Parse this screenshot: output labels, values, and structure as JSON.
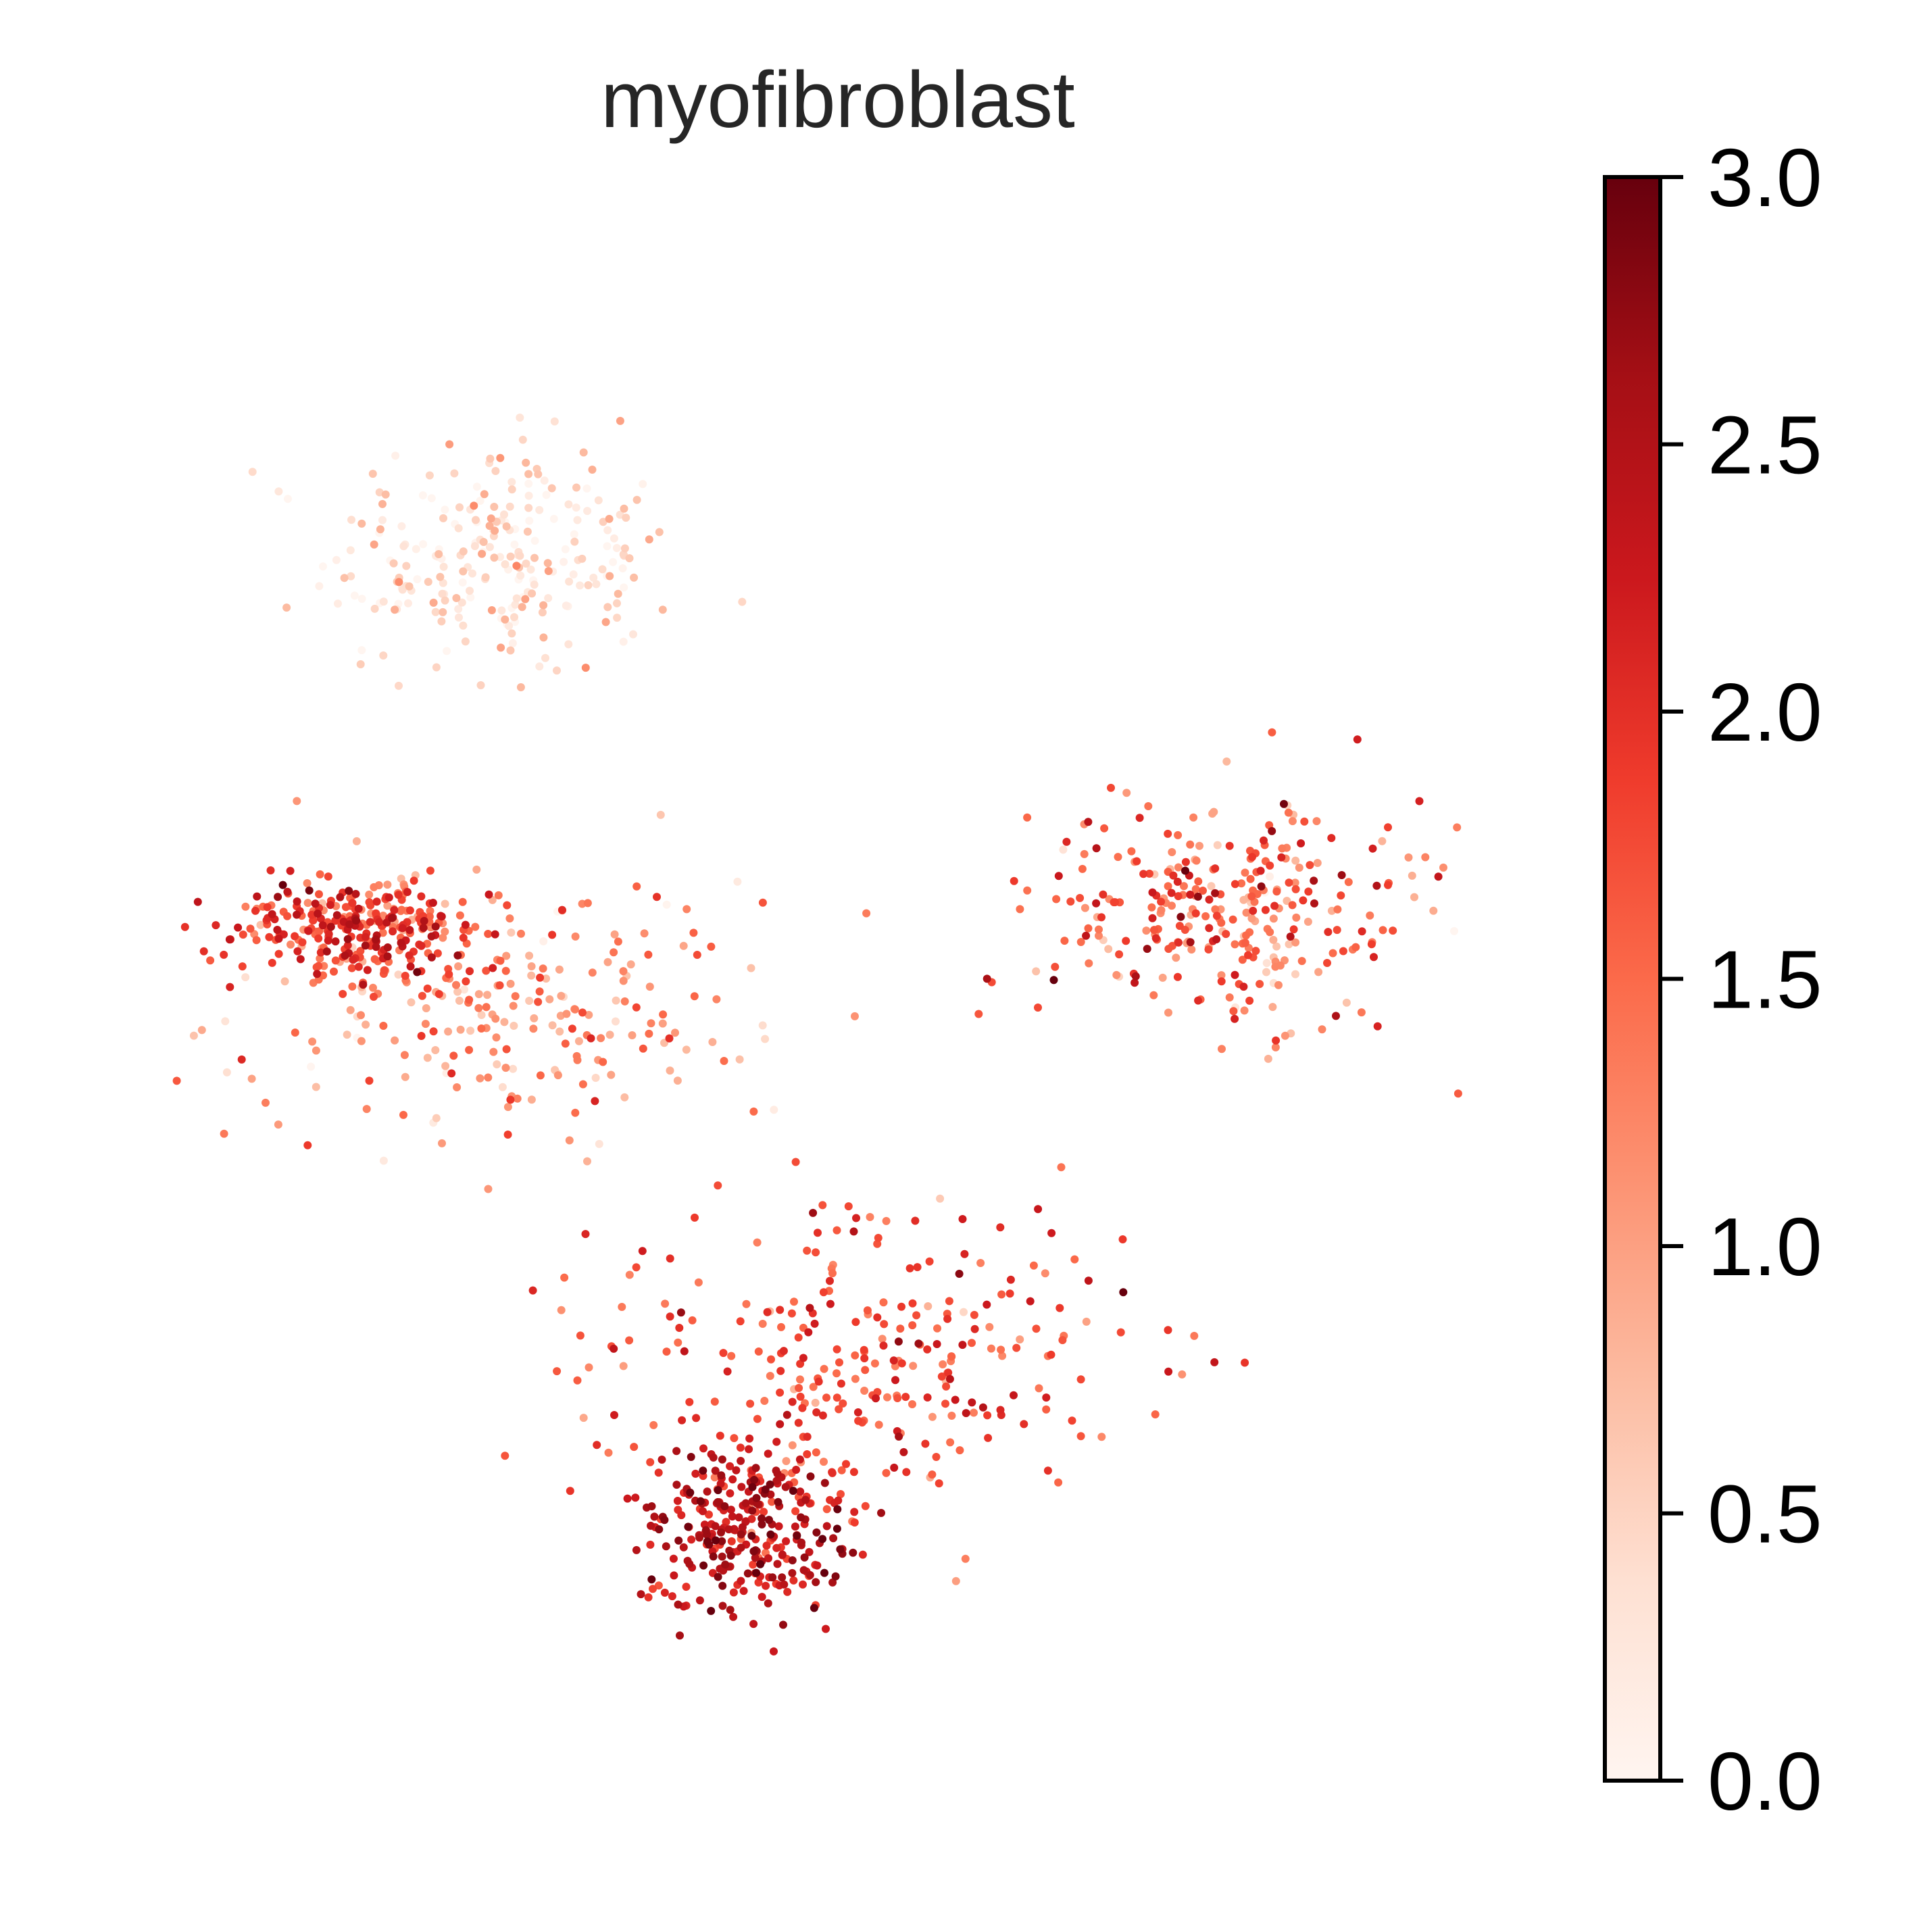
{
  "chart_data": {
    "type": "scatter",
    "title": "myofibroblast",
    "xlabel": "",
    "ylabel": "",
    "axes_visible": false,
    "colormap": "Reds",
    "colormap_stops": [
      "#fff5f0",
      "#fee0d2",
      "#fcbba1",
      "#fc9272",
      "#fb6a4a",
      "#ef3b2c",
      "#cb181d",
      "#a50f15",
      "#67000d"
    ],
    "colorbar": {
      "range": [
        0.0,
        3.0
      ],
      "ticks": [
        0.0,
        0.5,
        1.0,
        1.5,
        2.0,
        2.5,
        3.0
      ],
      "tick_labels": [
        "0.0",
        "0.5",
        "1.0",
        "1.5",
        "2.0",
        "2.5",
        "3.0"
      ],
      "placement": "right"
    },
    "clusters": [
      {
        "region": "upper-left",
        "center": [
          0.27,
          0.79
        ],
        "spread": [
          0.11,
          0.07
        ],
        "value_mean": 0.35,
        "value_sd": 0.35
      },
      {
        "region": "middle band",
        "center": [
          0.26,
          0.5
        ],
        "spread": [
          0.16,
          0.08
        ],
        "value_mean": 1.15,
        "value_sd": 0.45
      },
      {
        "region": "middle-left edge",
        "center": [
          0.17,
          0.55
        ],
        "spread": [
          0.08,
          0.03
        ],
        "value_mean": 1.9,
        "value_sd": 0.45
      },
      {
        "region": "lower-right",
        "center": [
          0.52,
          0.27
        ],
        "spread": [
          0.17,
          0.09
        ],
        "value_mean": 1.75,
        "value_sd": 0.4
      },
      {
        "region": "bottom tip",
        "center": [
          0.44,
          0.16
        ],
        "spread": [
          0.07,
          0.05
        ],
        "value_mean": 2.35,
        "value_sd": 0.35
      },
      {
        "region": "right islands",
        "center": [
          0.78,
          0.56
        ],
        "spread": [
          0.12,
          0.07
        ],
        "value_mean": 1.5,
        "value_sd": 0.55
      }
    ]
  }
}
